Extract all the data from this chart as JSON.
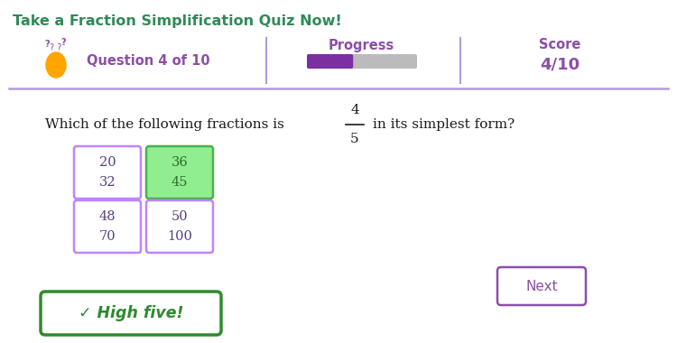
{
  "bg_color": "#ffffff",
  "title_text": "Take a Fraction Simplification Quiz Now!",
  "title_color": "#2e8b57",
  "title_fontsize": 11.5,
  "header_line_color": "#b19cd9",
  "question_label": "Question 4 of 10",
  "question_color": "#8b4fa8",
  "progress_label": "Progress",
  "progress_color": "#8b4fa8",
  "progress_filled_color": "#7b2fa0",
  "progress_empty_color": "#bbbbbb",
  "score_label": "Score",
  "score_value": "4/10",
  "score_color": "#8b4fa8",
  "question_text_1": "Which of the following fractions is",
  "fraction_num": "4",
  "fraction_den": "5",
  "question_text_2": "in its simplest form?",
  "question_fontsize": 11,
  "options": [
    {
      "num": "20",
      "den": "32",
      "correct": false,
      "col": 0,
      "row": 0
    },
    {
      "num": "36",
      "den": "45",
      "correct": true,
      "col": 1,
      "row": 0
    },
    {
      "num": "48",
      "den": "70",
      "correct": false,
      "col": 0,
      "row": 1
    },
    {
      "num": "50",
      "den": "100",
      "correct": false,
      "col": 1,
      "row": 1
    }
  ],
  "next_button_text": "Next",
  "next_button_color": "#8b4fa8",
  "highfive_text": "✓ High five!",
  "highfive_color": "#2e8b2e"
}
